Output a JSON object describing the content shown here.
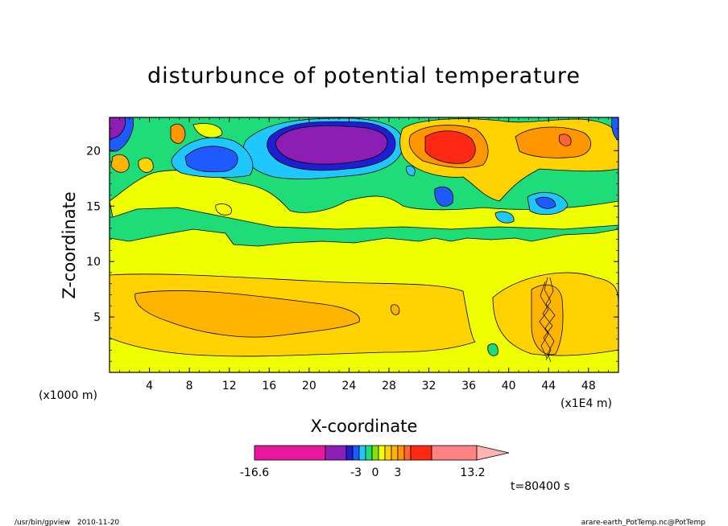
{
  "chart_data": {
    "type": "heatmap",
    "title": "disturbunce of potential temperature",
    "xlabel": "X-coordinate",
    "ylabel": "Z-coordinate",
    "x_units_left": "(x1000 m)",
    "x_units_right": "(x1E4 m)",
    "x_ticks": [
      "4",
      "8",
      "12",
      "16",
      "20",
      "24",
      "28",
      "32",
      "36",
      "40",
      "44",
      "48"
    ],
    "y_ticks": [
      "5",
      "10",
      "15",
      "20"
    ],
    "xlim": [
      0,
      51
    ],
    "ylim": [
      0,
      23
    ],
    "colorbar": {
      "min_label": "-16.6",
      "max_label": "13.2",
      "mid_labels": [
        "-3",
        "0",
        "3"
      ],
      "colors": [
        "#e6199e",
        "#8c1eb4",
        "#1e1ed2",
        "#1e5aff",
        "#1ec8ff",
        "#1edc78",
        "#82e600",
        "#f0ff00",
        "#ffd200",
        "#ffb400",
        "#ff9600",
        "#ff6432",
        "#ff2814",
        "#ff8282",
        "#ffb4b4"
      ]
    },
    "time_label": "t=80400 s",
    "footer_left": "/usr/bin/gpview   2010-11-20",
    "footer_right": "arare-earth_PotTemp.nc@PotTemp"
  }
}
